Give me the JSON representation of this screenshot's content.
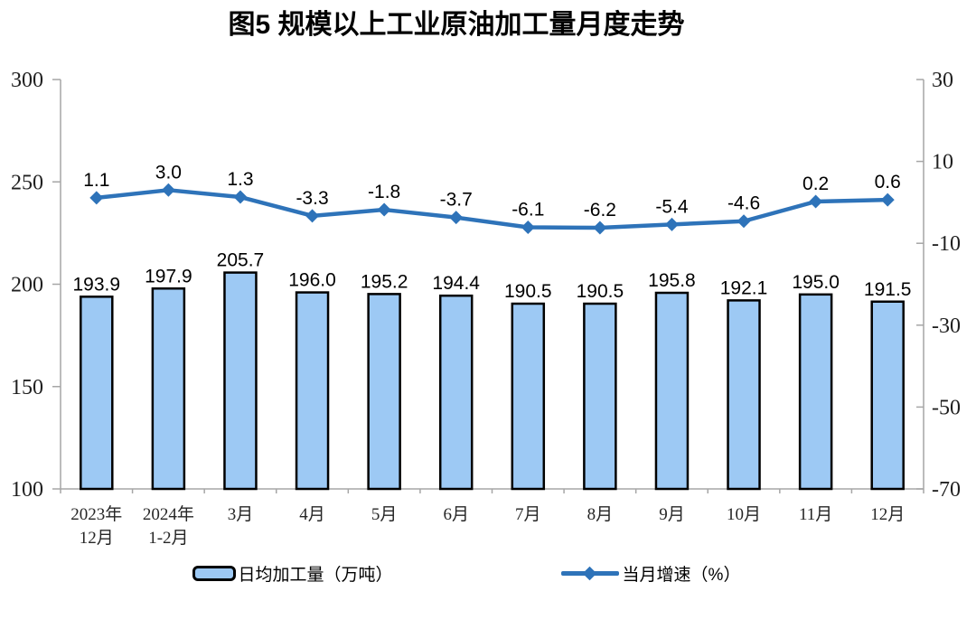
{
  "title": "图5  规模以上工业原油加工量月度走势",
  "chart_data": {
    "type": "bar+line",
    "categories": [
      [
        "2023年",
        "12月"
      ],
      [
        "2024年",
        "1-2月"
      ],
      [
        "3月"
      ],
      [
        "4月"
      ],
      [
        "5月"
      ],
      [
        "6月"
      ],
      [
        "7月"
      ],
      [
        "8月"
      ],
      [
        "9月"
      ],
      [
        "10月"
      ],
      [
        "11月"
      ],
      [
        "12月"
      ]
    ],
    "series": [
      {
        "name": "日均加工量（万吨）",
        "type": "bar",
        "axis": "left",
        "values": [
          193.9,
          197.9,
          205.7,
          196.0,
          195.2,
          194.4,
          190.5,
          190.5,
          195.8,
          192.1,
          195.0,
          191.5
        ]
      },
      {
        "name": "当月增速（%）",
        "type": "line",
        "axis": "right",
        "values": [
          1.1,
          3.0,
          1.3,
          -3.3,
          -1.8,
          -3.7,
          -6.1,
          -6.2,
          -5.4,
          -4.6,
          0.2,
          0.6
        ]
      }
    ],
    "left_axis": {
      "min": 100,
      "max": 300,
      "ticks": [
        300,
        250,
        200,
        150,
        100
      ]
    },
    "right_axis": {
      "min": -70,
      "max": 30,
      "ticks": [
        30,
        10,
        -10,
        -30,
        -50,
        -70
      ]
    },
    "legend": [
      {
        "label": "日均加工量（万吨）",
        "marker": "bar-swatch"
      },
      {
        "label": "当月增速（%）",
        "marker": "line-diamond"
      }
    ],
    "colors": {
      "bar_fill": "#9DC9F4",
      "bar_stroke": "#000000",
      "line": "#2E73B9",
      "axis": "#A6A6A6",
      "label_text": "#000000"
    },
    "grid": "off",
    "legend_position": "bottom"
  }
}
